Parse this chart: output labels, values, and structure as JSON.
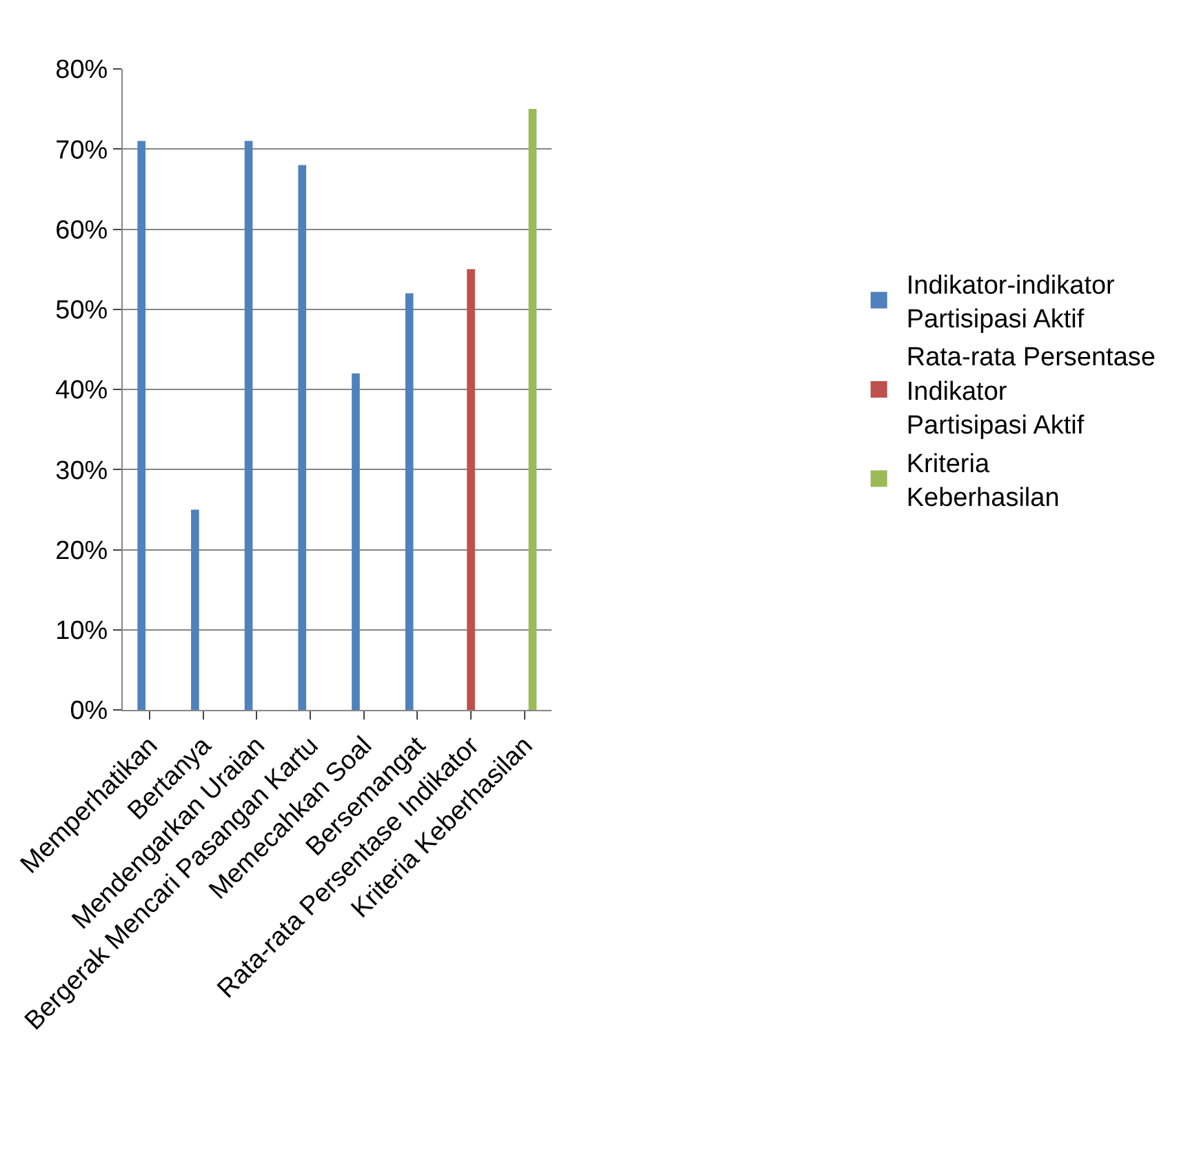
{
  "chart_data": {
    "type": "bar",
    "categories": [
      "Memperhatikan",
      "Bertanya",
      "Mendengarkan Uraian",
      "Bergerak Mencari Pasangan Kartu",
      "Memecahkan Soal",
      "Bersemangat",
      "Rata-rata Persentase Indikator",
      "Kriteria Keberhasilan"
    ],
    "series": [
      {
        "name": "Indikator-indikator Partisipasi Aktif",
        "color": "#4f81bd",
        "values": [
          71,
          25,
          71,
          68,
          42,
          52,
          null,
          0
        ]
      },
      {
        "name": "Rata-rata Persentase Indikator Partisipasi Aktif",
        "color": "#c0504d",
        "values": [
          null,
          null,
          null,
          null,
          null,
          null,
          55,
          null
        ]
      },
      {
        "name": "Kriteria Keberhasilan",
        "color": "#9bbb59",
        "values": [
          null,
          null,
          null,
          null,
          null,
          null,
          null,
          75
        ]
      }
    ],
    "ylim": [
      0,
      80
    ],
    "yticks": [
      {
        "value": 0,
        "label": "0%"
      },
      {
        "value": 10,
        "label": "10%"
      },
      {
        "value": 20,
        "label": "20%"
      },
      {
        "value": 30,
        "label": "30%"
      },
      {
        "value": 40,
        "label": "40%"
      },
      {
        "value": 50,
        "label": "50%"
      },
      {
        "value": 60,
        "label": "60%"
      },
      {
        "value": 70,
        "label": "70%"
      },
      {
        "value": 80,
        "label": "80%"
      }
    ],
    "grid": "y",
    "legend": "right"
  }
}
